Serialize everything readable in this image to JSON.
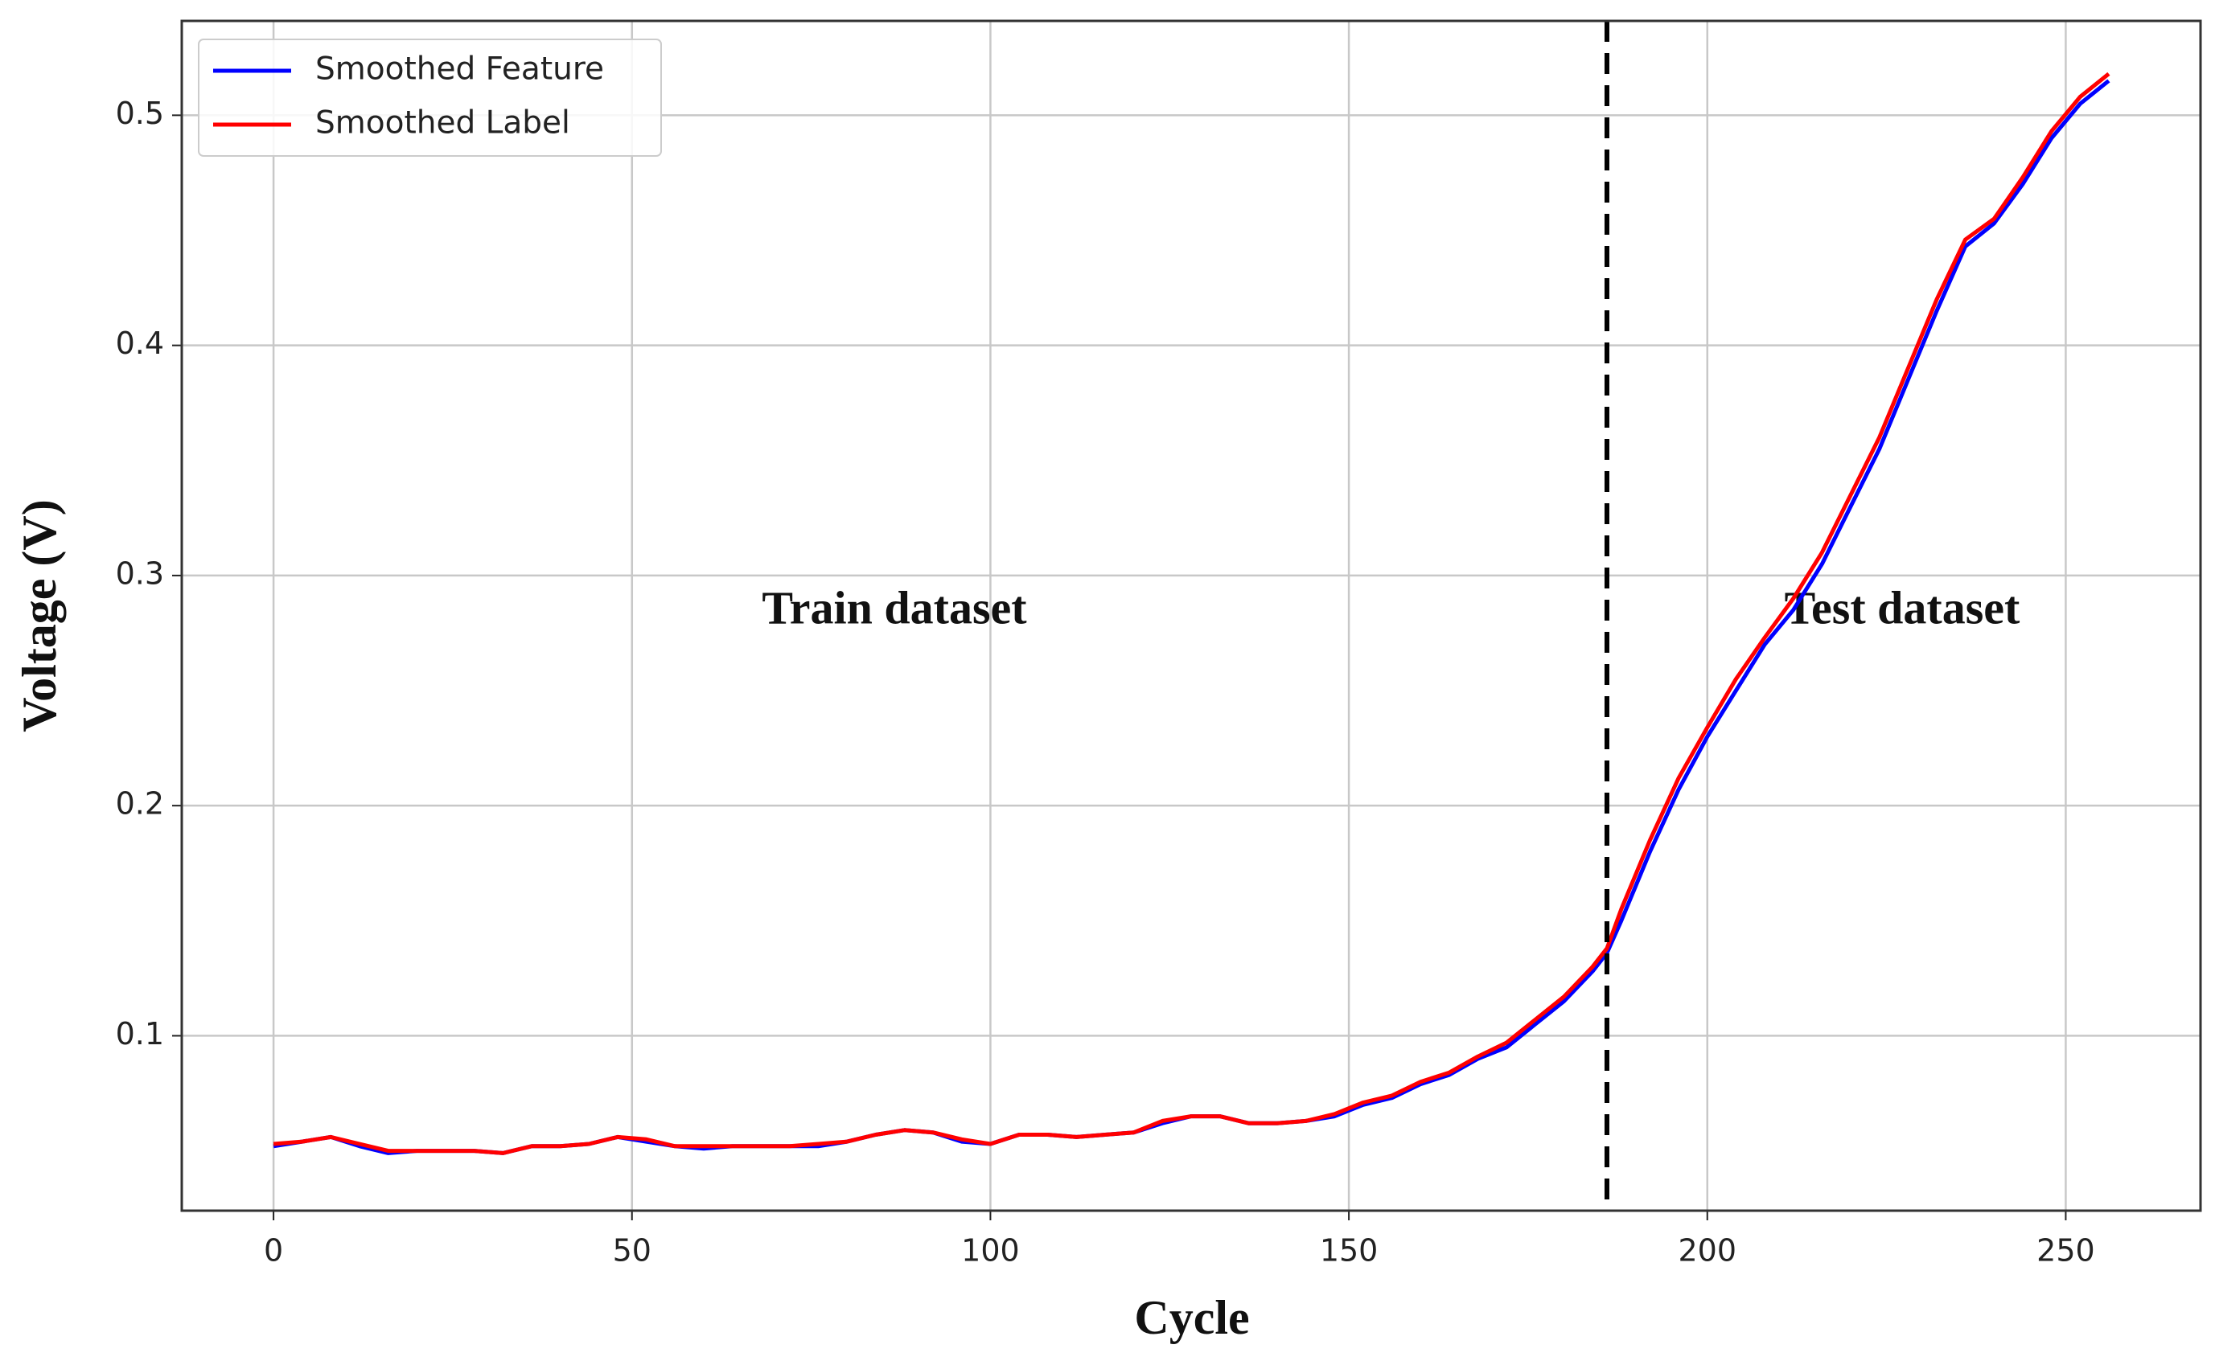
{
  "chart_data": {
    "type": "line",
    "xlabel": "Cycle",
    "ylabel": "Voltage (V)",
    "annotations": [
      "Train dataset",
      "Test dataset"
    ],
    "split_x": 186,
    "x": [
      0,
      4,
      8,
      12,
      16,
      20,
      24,
      28,
      32,
      36,
      40,
      44,
      48,
      52,
      56,
      60,
      64,
      68,
      72,
      76,
      80,
      84,
      88,
      92,
      96,
      100,
      104,
      108,
      112,
      116,
      120,
      124,
      128,
      132,
      136,
      140,
      144,
      148,
      152,
      156,
      160,
      164,
      168,
      172,
      176,
      180,
      184,
      186,
      188,
      192,
      196,
      200,
      204,
      208,
      212,
      216,
      220,
      224,
      228,
      232,
      236,
      240,
      244,
      248,
      252,
      256
    ],
    "series": [
      {
        "name": "Smoothed Feature",
        "color": "#0000ff",
        "values": [
          0.052,
          0.054,
          0.056,
          0.052,
          0.049,
          0.05,
          0.05,
          0.05,
          0.049,
          0.052,
          0.052,
          0.053,
          0.056,
          0.054,
          0.052,
          0.051,
          0.052,
          0.052,
          0.052,
          0.052,
          0.054,
          0.057,
          0.059,
          0.058,
          0.054,
          0.053,
          0.057,
          0.057,
          0.056,
          0.057,
          0.058,
          0.062,
          0.065,
          0.065,
          0.062,
          0.062,
          0.063,
          0.065,
          0.07,
          0.073,
          0.079,
          0.083,
          0.09,
          0.095,
          0.105,
          0.115,
          0.128,
          0.136,
          0.15,
          0.18,
          0.207,
          0.23,
          0.25,
          0.27,
          0.285,
          0.305,
          0.33,
          0.355,
          0.385,
          0.415,
          0.443,
          0.453,
          0.47,
          0.49,
          0.505,
          0.515
        ]
      },
      {
        "name": "Smoothed Label",
        "color": "#ff0000",
        "values": [
          0.053,
          0.054,
          0.056,
          0.053,
          0.05,
          0.05,
          0.05,
          0.05,
          0.049,
          0.052,
          0.052,
          0.053,
          0.056,
          0.055,
          0.052,
          0.052,
          0.052,
          0.052,
          0.052,
          0.053,
          0.054,
          0.057,
          0.059,
          0.058,
          0.055,
          0.053,
          0.057,
          0.057,
          0.056,
          0.057,
          0.058,
          0.063,
          0.065,
          0.065,
          0.062,
          0.062,
          0.063,
          0.066,
          0.071,
          0.074,
          0.08,
          0.084,
          0.091,
          0.097,
          0.107,
          0.117,
          0.13,
          0.138,
          0.155,
          0.185,
          0.212,
          0.234,
          0.255,
          0.273,
          0.29,
          0.31,
          0.335,
          0.36,
          0.39,
          0.42,
          0.446,
          0.455,
          0.473,
          0.493,
          0.508,
          0.518
        ]
      }
    ],
    "xlim": [
      -12.8,
      268.8
    ],
    "xticks": [
      0,
      50,
      100,
      150,
      200,
      250
    ],
    "ylim": [
      0.024,
      0.541
    ],
    "yticks": [
      0.1,
      0.2,
      0.3,
      0.4,
      0.5
    ],
    "grid": true,
    "legend": "upper left"
  }
}
